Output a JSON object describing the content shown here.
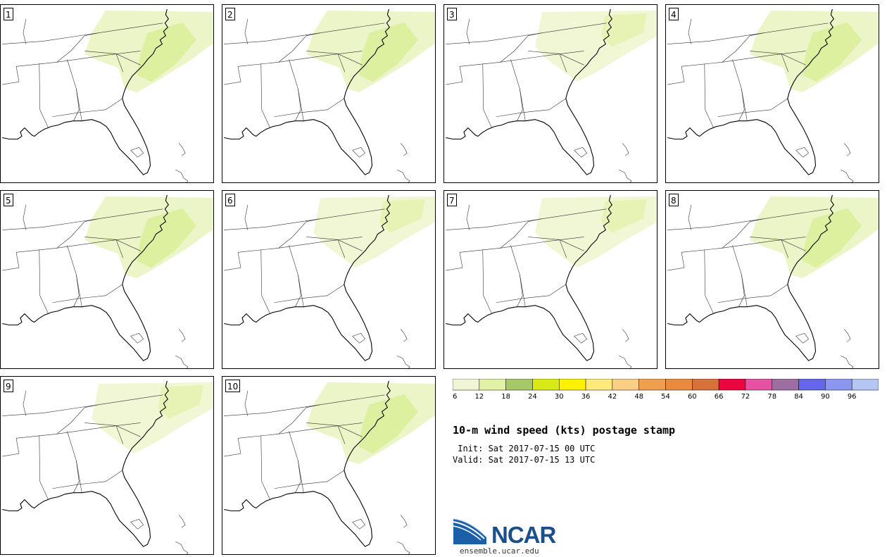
{
  "panels": [
    {
      "label": "1",
      "wind_coverage": "moderate"
    },
    {
      "label": "2",
      "wind_coverage": "moderate"
    },
    {
      "label": "3",
      "wind_coverage": "light"
    },
    {
      "label": "4",
      "wind_coverage": "moderate"
    },
    {
      "label": "5",
      "wind_coverage": "moderate"
    },
    {
      "label": "6",
      "wind_coverage": "light"
    },
    {
      "label": "7",
      "wind_coverage": "light"
    },
    {
      "label": "8",
      "wind_coverage": "moderate"
    },
    {
      "label": "9",
      "wind_coverage": "light"
    },
    {
      "label": "10",
      "wind_coverage": "moderate"
    }
  ],
  "colorbar": {
    "ticks": [
      "6",
      "12",
      "18",
      "24",
      "30",
      "36",
      "42",
      "48",
      "54",
      "60",
      "66",
      "72",
      "78",
      "84",
      "90",
      "96"
    ],
    "colors": [
      "#f1f5d5",
      "#e1f1a5",
      "#a5c86a",
      "#d7ea18",
      "#fcf200",
      "#fdea7b",
      "#f9cf86",
      "#f0a04c",
      "#e98a3c",
      "#d87139",
      "#ec0640",
      "#e651a3",
      "#9c6ea2",
      "#6666ec",
      "#8a96f0",
      "#b6c6f4"
    ]
  },
  "title": "10-m wind speed (kts) postage stamp",
  "init_line": " Init: Sat 2017-07-15 00 UTC",
  "valid_line": "Valid: Sat 2017-07-15 13 UTC",
  "logo": {
    "text": "NCAR",
    "url": "ensemble.ucar.edu"
  }
}
